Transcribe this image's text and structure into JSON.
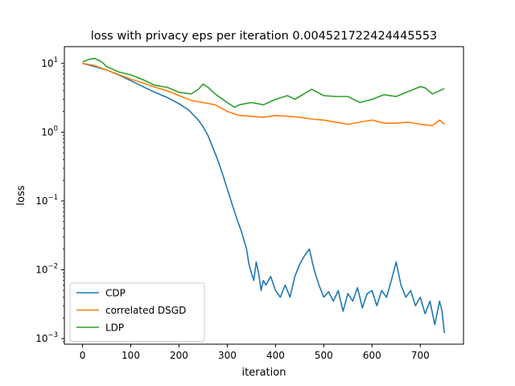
{
  "chart_data": {
    "type": "line",
    "title": "loss with privacy eps per iteration 0.004521722424445553",
    "xlabel": "iteration",
    "ylabel": "loss",
    "yscale": "log",
    "xlim": [
      -37.6,
      789.6
    ],
    "ylim": [
      0.00083,
      17.5
    ],
    "xticks": [
      0,
      100,
      200,
      300,
      400,
      500,
      600,
      700
    ],
    "yticks": [
      {
        "value": 10,
        "base": "10",
        "exp": "1"
      },
      {
        "value": 1,
        "base": "10",
        "exp": "0"
      },
      {
        "value": 0.1,
        "base": "10",
        "exp": "−1"
      },
      {
        "value": 0.01,
        "base": "10",
        "exp": "−2"
      },
      {
        "value": 0.001,
        "base": "10",
        "exp": "−3"
      }
    ],
    "grid": false,
    "legend_position": "lower-left",
    "series": [
      {
        "name": "CDP",
        "color": "#1f77b4",
        "x": [
          0,
          25,
          50,
          75,
          100,
          125,
          150,
          175,
          200,
          220,
          240,
          250,
          260,
          270,
          280,
          290,
          300,
          310,
          320,
          330,
          340,
          345,
          350,
          355,
          360,
          365,
          370,
          375,
          380,
          390,
          400,
          410,
          420,
          430,
          440,
          450,
          460,
          470,
          480,
          490,
          500,
          510,
          520,
          530,
          540,
          550,
          560,
          570,
          580,
          590,
          600,
          610,
          620,
          630,
          640,
          650,
          660,
          670,
          680,
          690,
          700,
          710,
          720,
          730,
          740,
          745,
          750
        ],
        "y": [
          10,
          9.0,
          8.0,
          6.8,
          5.6,
          4.6,
          3.8,
          3.2,
          2.6,
          2.1,
          1.5,
          1.2,
          0.9,
          0.6,
          0.4,
          0.25,
          0.15,
          0.09,
          0.055,
          0.035,
          0.02,
          0.012,
          0.009,
          0.007,
          0.013,
          0.009,
          0.005,
          0.007,
          0.006,
          0.008,
          0.005,
          0.004,
          0.006,
          0.004,
          0.008,
          0.012,
          0.016,
          0.02,
          0.01,
          0.006,
          0.004,
          0.0048,
          0.0035,
          0.005,
          0.0025,
          0.0045,
          0.0035,
          0.0055,
          0.0028,
          0.0045,
          0.005,
          0.003,
          0.005,
          0.004,
          0.007,
          0.013,
          0.006,
          0.004,
          0.005,
          0.003,
          0.004,
          0.0023,
          0.0035,
          0.0016,
          0.0035,
          0.0025,
          0.0012
        ]
      },
      {
        "name": "correlated DSGD",
        "color": "#ff7f0e",
        "x": [
          0,
          25,
          50,
          75,
          100,
          125,
          150,
          175,
          200,
          225,
          250,
          275,
          300,
          325,
          350,
          375,
          400,
          425,
          450,
          475,
          500,
          525,
          550,
          575,
          600,
          625,
          650,
          675,
          700,
          725,
          740,
          750
        ],
        "y": [
          10,
          9.3,
          8.0,
          6.9,
          5.9,
          5.2,
          4.5,
          4.0,
          3.4,
          2.9,
          2.7,
          2.5,
          2.0,
          1.75,
          1.7,
          1.65,
          1.75,
          1.7,
          1.65,
          1.55,
          1.5,
          1.4,
          1.3,
          1.4,
          1.5,
          1.35,
          1.35,
          1.4,
          1.3,
          1.25,
          1.5,
          1.3
        ]
      },
      {
        "name": "LDP",
        "color": "#2ca02c",
        "x": [
          0,
          15,
          25,
          40,
          50,
          75,
          100,
          125,
          150,
          175,
          200,
          225,
          240,
          250,
          260,
          275,
          300,
          315,
          325,
          350,
          375,
          400,
          425,
          440,
          450,
          475,
          500,
          525,
          550,
          575,
          600,
          625,
          650,
          675,
          700,
          710,
          725,
          750
        ],
        "y": [
          10.5,
          11.5,
          11.8,
          10.5,
          9.0,
          7.5,
          6.8,
          5.8,
          4.8,
          4.5,
          3.8,
          3.6,
          4.2,
          5.0,
          4.5,
          3.6,
          2.7,
          2.3,
          2.5,
          2.7,
          2.5,
          3.0,
          3.4,
          3.0,
          3.3,
          4.2,
          3.4,
          3.3,
          3.3,
          2.7,
          3.0,
          3.5,
          3.3,
          3.9,
          4.6,
          4.4,
          3.6,
          4.3
        ]
      }
    ]
  }
}
